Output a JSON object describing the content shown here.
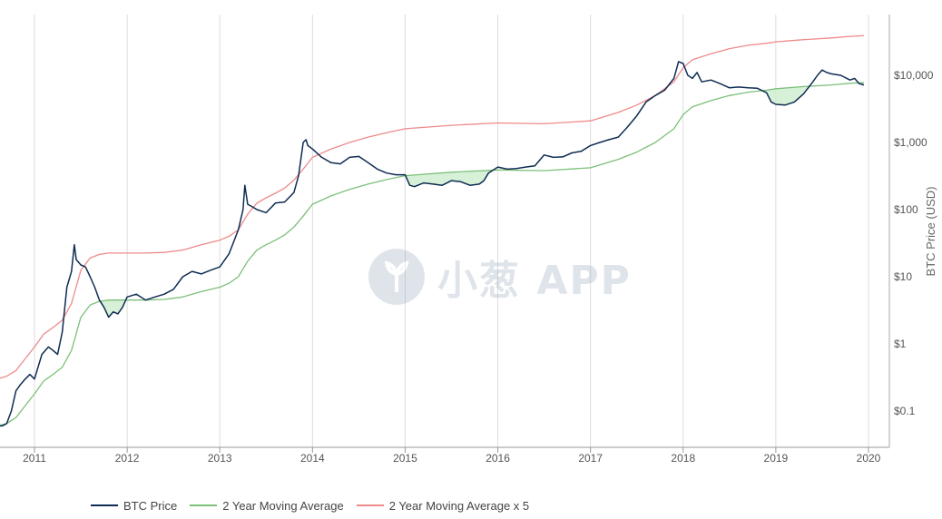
{
  "chart_data": {
    "type": "line",
    "yscale": "log",
    "ylabel": "BTC Price (USD)",
    "xlim": [
      2010.6,
      2020.1
    ],
    "ylim": [
      0.03,
      100000
    ],
    "x_ticks": [
      "2011",
      "2012",
      "2013",
      "2014",
      "2015",
      "2016",
      "2017",
      "2018",
      "2019",
      "2020"
    ],
    "y_ticks": [
      "$0.1",
      "$1",
      "$10",
      "$100",
      "$1,000",
      "$10,000"
    ],
    "y_tick_values": [
      0.1,
      1,
      10,
      100,
      1000,
      10000
    ],
    "grid": "vertical",
    "legend_position": "bottom-left",
    "series": [
      {
        "name": "BTC Price",
        "color": "#0f2c52",
        "x": [
          2010.6,
          2010.65,
          2010.7,
          2010.75,
          2010.8,
          2010.85,
          2010.9,
          2010.95,
          2011.0,
          2011.08,
          2011.15,
          2011.2,
          2011.25,
          2011.3,
          2011.35,
          2011.4,
          2011.43,
          2011.45,
          2011.5,
          2011.55,
          2011.6,
          2011.65,
          2011.7,
          2011.75,
          2011.8,
          2011.85,
          2011.9,
          2011.95,
          2012.0,
          2012.1,
          2012.2,
          2012.3,
          2012.4,
          2012.5,
          2012.6,
          2012.7,
          2012.8,
          2012.9,
          2013.0,
          2013.1,
          2013.2,
          2013.25,
          2013.27,
          2013.3,
          2013.35,
          2013.4,
          2013.5,
          2013.6,
          2013.7,
          2013.8,
          2013.85,
          2013.9,
          2013.93,
          2013.95,
          2014.0,
          2014.1,
          2014.2,
          2014.3,
          2014.4,
          2014.5,
          2014.6,
          2014.7,
          2014.8,
          2014.9,
          2015.0,
          2015.05,
          2015.1,
          2015.2,
          2015.3,
          2015.4,
          2015.5,
          2015.6,
          2015.7,
          2015.8,
          2015.85,
          2015.9,
          2016.0,
          2016.1,
          2016.2,
          2016.3,
          2016.4,
          2016.5,
          2016.6,
          2016.7,
          2016.8,
          2016.9,
          2017.0,
          2017.1,
          2017.2,
          2017.3,
          2017.4,
          2017.5,
          2017.6,
          2017.7,
          2017.8,
          2017.9,
          2017.95,
          2018.0,
          2018.05,
          2018.1,
          2018.15,
          2018.2,
          2018.3,
          2018.4,
          2018.5,
          2018.6,
          2018.7,
          2018.8,
          2018.9,
          2018.95,
          2019.0,
          2019.1,
          2019.2,
          2019.3,
          2019.4,
          2019.45,
          2019.5,
          2019.55,
          2019.6,
          2019.7,
          2019.8,
          2019.85,
          2019.9,
          2019.95
        ],
        "values": [
          0.06,
          0.06,
          0.065,
          0.1,
          0.2,
          0.25,
          0.3,
          0.35,
          0.3,
          0.7,
          0.9,
          0.8,
          0.7,
          1.5,
          7,
          12,
          30,
          18,
          15,
          14,
          10,
          7,
          4.5,
          3.5,
          2.5,
          3,
          2.8,
          3.5,
          5,
          5.5,
          4.5,
          5,
          5.5,
          6.5,
          10,
          12,
          11,
          12.5,
          14,
          22,
          50,
          100,
          230,
          120,
          110,
          100,
          90,
          125,
          130,
          180,
          320,
          1000,
          1100,
          900,
          800,
          600,
          500,
          480,
          600,
          620,
          500,
          400,
          350,
          330,
          330,
          230,
          220,
          250,
          240,
          230,
          270,
          260,
          230,
          240,
          270,
          350,
          430,
          400,
          410,
          430,
          450,
          650,
          600,
          610,
          700,
          740,
          900,
          1000,
          1100,
          1200,
          1700,
          2500,
          4000,
          5000,
          6000,
          9000,
          16000,
          15000,
          10000,
          9000,
          11000,
          8000,
          8500,
          7500,
          6500,
          6700,
          6500,
          6400,
          5500,
          4000,
          3700,
          3600,
          4000,
          5300,
          8000,
          10000,
          12000,
          11000,
          10500,
          10000,
          8500,
          9000,
          7500,
          7200
        ]
      },
      {
        "name": "2 Year Moving Average",
        "color": "#7cc07a",
        "x": [
          2010.6,
          2010.7,
          2010.8,
          2010.9,
          2011.0,
          2011.1,
          2011.2,
          2011.3,
          2011.4,
          2011.5,
          2011.6,
          2011.7,
          2011.8,
          2012.0,
          2012.2,
          2012.4,
          2012.6,
          2012.8,
          2013.0,
          2013.1,
          2013.2,
          2013.3,
          2013.4,
          2013.5,
          2013.6,
          2013.7,
          2013.8,
          2013.9,
          2014.0,
          2014.2,
          2014.4,
          2014.6,
          2014.8,
          2015.0,
          2015.5,
          2016.0,
          2016.5,
          2017.0,
          2017.3,
          2017.5,
          2017.7,
          2017.9,
          2018.0,
          2018.1,
          2018.3,
          2018.5,
          2018.7,
          2018.9,
          2019.0,
          2019.3,
          2019.6,
          2019.8,
          2019.95
        ],
        "values": [
          0.06,
          0.065,
          0.08,
          0.12,
          0.18,
          0.28,
          0.35,
          0.45,
          0.8,
          2.5,
          3.8,
          4.3,
          4.5,
          4.5,
          4.5,
          4.6,
          5,
          6,
          7,
          8,
          10,
          17,
          25,
          30,
          35,
          42,
          55,
          80,
          120,
          160,
          200,
          240,
          280,
          320,
          360,
          390,
          380,
          420,
          560,
          720,
          1000,
          1600,
          2600,
          3400,
          4200,
          5000,
          5600,
          6000,
          6300,
          6800,
          7200,
          7600,
          7800
        ]
      },
      {
        "name": "2 Year Moving Average x 5",
        "color": "#ef8a8a",
        "x": [
          2010.6,
          2010.7,
          2010.8,
          2010.9,
          2011.0,
          2011.1,
          2011.2,
          2011.3,
          2011.4,
          2011.5,
          2011.6,
          2011.7,
          2011.8,
          2012.0,
          2012.2,
          2012.4,
          2012.6,
          2012.8,
          2013.0,
          2013.1,
          2013.2,
          2013.3,
          2013.4,
          2013.5,
          2013.6,
          2013.7,
          2013.8,
          2013.9,
          2014.0,
          2014.2,
          2014.4,
          2014.6,
          2014.8,
          2015.0,
          2015.5,
          2016.0,
          2016.5,
          2017.0,
          2017.3,
          2017.5,
          2017.7,
          2017.9,
          2018.0,
          2018.1,
          2018.3,
          2018.5,
          2018.7,
          2018.9,
          2019.0,
          2019.3,
          2019.6,
          2019.8,
          2019.95
        ],
        "values": [
          0.3,
          0.33,
          0.4,
          0.6,
          0.9,
          1.4,
          1.75,
          2.25,
          4,
          12.5,
          19,
          21.5,
          22.5,
          22.5,
          22.5,
          23,
          25,
          30,
          35,
          40,
          50,
          85,
          125,
          150,
          175,
          210,
          275,
          400,
          600,
          800,
          1000,
          1200,
          1400,
          1600,
          1800,
          1950,
          1900,
          2100,
          2800,
          3600,
          5000,
          8000,
          13000,
          17000,
          21000,
          25000,
          28000,
          30000,
          31500,
          34000,
          36000,
          38000,
          39000
        ]
      }
    ]
  },
  "legend": {
    "btc_label": "BTC Price",
    "ma_label": "2 Year Moving Average",
    "ma5_label": "2 Year Moving Average x 5"
  },
  "watermark": {
    "text": "小葱 APP",
    "color": "#8fa2b8"
  }
}
